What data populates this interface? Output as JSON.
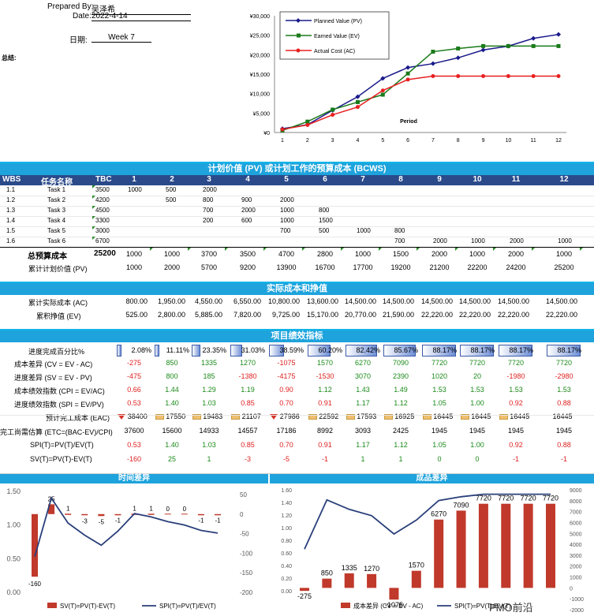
{
  "header": {
    "prepared_label": "Prepared By:",
    "prepared_value": "吴泽希",
    "date_label": "Date:",
    "date_value": "2022-4-14",
    "period_label": "日期:",
    "period_value": "Week 7",
    "summary_label": "总结:"
  },
  "top_chart": {
    "y_ticks": [
      "¥30,000",
      "¥25,000",
      "¥20,000",
      "¥15,000",
      "¥10,000",
      "¥5,000",
      "¥0"
    ],
    "x_ticks": [
      "1",
      "2",
      "3",
      "4",
      "5",
      "6",
      "7",
      "8",
      "9",
      "10",
      "11",
      "12"
    ],
    "xlabel": "Period",
    "legend": [
      "Planned Value (PV)",
      "Earned Value (EV)",
      "Actual Cost (AC)"
    ],
    "colors": {
      "pv": "#1a1a8c",
      "ev": "#1a7a1a",
      "ac": "#e82020"
    }
  },
  "chart_data": [
    {
      "type": "line",
      "title": "",
      "xlabel": "Period",
      "ylabel": "",
      "ylim": [
        0,
        30000
      ],
      "x": [
        1,
        2,
        3,
        4,
        5,
        6,
        7,
        8,
        9,
        10,
        11,
        12
      ],
      "series": [
        {
          "name": "Planned Value (PV)",
          "values": [
            1000,
            2000,
            5700,
            9200,
            13900,
            16700,
            17700,
            19200,
            21200,
            22200,
            24200,
            25200
          ]
        },
        {
          "name": "Earned Value (EV)",
          "values": [
            525,
            2800,
            5885,
            7820,
            9725,
            15170,
            20770,
            21590,
            22220,
            22220,
            22220,
            22220
          ]
        },
        {
          "name": "Actual Cost (AC)",
          "values": [
            800,
            1950,
            4550,
            6550,
            10800,
            13600,
            14500,
            14500,
            14500,
            14500,
            14500,
            14500
          ]
        }
      ]
    },
    {
      "type": "bar",
      "title": "时间差异",
      "categories": [
        "1",
        "2",
        "3",
        "4",
        "5",
        "6",
        "7",
        "8",
        "9",
        "10",
        "11",
        "12"
      ],
      "series": [
        {
          "name": "SV(T)=PV(T)-EV(T)",
          "values": [
            -160,
            25,
            1,
            -3,
            -5,
            -1,
            1,
            1,
            0,
            0,
            -1,
            -1
          ]
        },
        {
          "name": "SPI(T)=PV(T)/EV(T)",
          "values": [
            0.53,
            1.4,
            1.03,
            0.85,
            0.7,
            0.91,
            1.17,
            1.12,
            1.05,
            1.0,
            0.92,
            0.88
          ]
        }
      ],
      "ylim_left": [
        0,
        1.5
      ],
      "ylim_right": [
        -200,
        50
      ]
    },
    {
      "type": "bar",
      "title": "成品差异",
      "categories": [
        "1",
        "2",
        "3",
        "4",
        "5",
        "6",
        "7",
        "8",
        "9",
        "10",
        "11",
        "12"
      ],
      "series": [
        {
          "name": "成本差异 (CV = EV - AC)",
          "values": [
            -275,
            850,
            1335,
            1270,
            -1075,
            1570,
            6270,
            7090,
            7720,
            7720,
            7720,
            7720
          ]
        },
        {
          "name": "SPI(T)=PV(T)/EV(T)",
          "values": [
            0.66,
            1.44,
            1.29,
            1.19,
            0.9,
            1.12,
            1.43,
            1.49,
            1.53,
            1.53,
            1.53,
            1.53
          ]
        }
      ],
      "ylim_left": [
        0,
        1.6
      ],
      "ylim_right": [
        -2000,
        9000
      ]
    }
  ],
  "pv_section": {
    "title": "计划价值 (PV) 或计划工作的预算成本 (BCWS)",
    "col_wbs": "WBS",
    "col_task": "任务名称",
    "col_tbc": "TBC",
    "periods": [
      "1",
      "2",
      "3",
      "4",
      "5",
      "6",
      "7",
      "8",
      "9",
      "10",
      "11",
      "12"
    ],
    "tasks": [
      {
        "wbs": "1.1",
        "name": "Task 1",
        "tbc": "3500",
        "cells": [
          "1000",
          "500",
          "2000",
          "",
          "",
          "",
          "",
          "",
          "",
          "",
          "",
          ""
        ]
      },
      {
        "wbs": "1.2",
        "name": "Task 2",
        "tbc": "4200",
        "cells": [
          "",
          "500",
          "800",
          "900",
          "2000",
          "",
          "",
          "",
          "",
          "",
          "",
          ""
        ]
      },
      {
        "wbs": "1.3",
        "name": "Task 3",
        "tbc": "4500",
        "cells": [
          "",
          "",
          "700",
          "2000",
          "1000",
          "800",
          "",
          "",
          "",
          "",
          "",
          ""
        ]
      },
      {
        "wbs": "1.4",
        "name": "Task 4",
        "tbc": "3300",
        "cells": [
          "",
          "",
          "200",
          "600",
          "1000",
          "1500",
          "",
          "",
          "",
          "",
          "",
          ""
        ]
      },
      {
        "wbs": "1.5",
        "name": "Task 5",
        "tbc": "3000",
        "cells": [
          "",
          "",
          "",
          "",
          "700",
          "500",
          "1000",
          "800",
          "",
          "",
          "",
          ""
        ]
      },
      {
        "wbs": "1.6",
        "name": "Task 6",
        "tbc": "6700",
        "cells": [
          "",
          "",
          "",
          "",
          "",
          "",
          "",
          "700",
          "2000",
          "1000",
          "2000",
          "1000"
        ]
      }
    ],
    "budget_label": "总预算成本",
    "budget_total": "25200",
    "budget_values": [
      "1000",
      "1000",
      "3700",
      "3500",
      "4700",
      "2800",
      "1000",
      "1500",
      "2000",
      "1000",
      "2000",
      "1000"
    ],
    "cum_label": "累计计划价值 (PV)",
    "cum_values": [
      "1000",
      "2000",
      "5700",
      "9200",
      "13900",
      "16700",
      "17700",
      "19200",
      "21200",
      "22200",
      "24200",
      "25200"
    ]
  },
  "ac_section": {
    "title": "实际成本和挣值",
    "ac_label": "累计实际成本 (AC)",
    "ac_values": [
      "800.00",
      "1,950.00",
      "4,550.00",
      "6,550.00",
      "10,800.00",
      "13,600.00",
      "14,500.00",
      "14,500.00",
      "14,500.00",
      "14,500.00",
      "14,500.00",
      "14,500.00"
    ],
    "ev_label": "累积挣值 (EV)",
    "ev_values": [
      "525.00",
      "2,800.00",
      "5,885.00",
      "7,820.00",
      "9,725.00",
      "15,170.00",
      "20,770.00",
      "21,590.00",
      "22,220.00",
      "22,220.00",
      "22,220.00",
      "22,220.00"
    ]
  },
  "kpi_section": {
    "title": "项目绩效指标",
    "progress_label": "进度完成百分比%",
    "progress_values": [
      "2.08%",
      "11.11%",
      "23.35%",
      "31.03%",
      "38.59%",
      "60.20%",
      "82.42%",
      "85.67%",
      "88.17%",
      "88.17%",
      "88.17%",
      "88.17%"
    ],
    "progress_fractions": [
      0.0208,
      0.1111,
      0.2335,
      0.3103,
      0.3859,
      0.602,
      0.8242,
      0.8567,
      0.8817,
      0.8817,
      0.8817,
      0.8817
    ],
    "cv_label": "成本差异 (CV = EV - AC)",
    "cv_values": [
      "-275",
      "850",
      "1335",
      "1270",
      "-1075",
      "1570",
      "6270",
      "7090",
      "7720",
      "7720",
      "7720",
      "7720"
    ],
    "sv_label": "进度差异 (SV = EV - PV)",
    "sv_values": [
      "-475",
      "800",
      "185",
      "-1380",
      "-4175",
      "-1530",
      "3070",
      "2390",
      "1020",
      "20",
      "-1980",
      "-2980"
    ],
    "cpi_label": "成本绩效指数 (CPI = EV/AC)",
    "cpi_values": [
      "0.66",
      "1.44",
      "1.29",
      "1.19",
      "0.90",
      "1.12",
      "1.43",
      "1.49",
      "1.53",
      "1.53",
      "1.53",
      "1.53"
    ],
    "spi_label": "进度绩效指数 (SPI = EV/PV)",
    "spi_values": [
      "0.53",
      "1.40",
      "1.03",
      "0.85",
      "0.70",
      "0.91",
      "1.17",
      "1.12",
      "1.05",
      "1.00",
      "0.92",
      "0.88"
    ],
    "eac_label": "预计完工成本 (EAC)",
    "eac_values": [
      "38400",
      "17550",
      "19483",
      "21107",
      "27986",
      "22592",
      "17593",
      "16925",
      "16445",
      "16445",
      "16445",
      "16445"
    ],
    "eac_icons": [
      "down",
      "flat",
      "flat",
      "flat",
      "down",
      "flat",
      "flat",
      "flat",
      "flat",
      "flat",
      "flat",
      ""
    ],
    "etc_label": "完工尚需估算 (ETC=(BAC-EV)/CPI)",
    "etc_values": [
      "37600",
      "15600",
      "14933",
      "14557",
      "17186",
      "8992",
      "3093",
      "2425",
      "1945",
      "1945",
      "1945",
      "1945"
    ],
    "spit_label": "SPI(T)=PV(T)/EV(T)",
    "spit_values": [
      "0.53",
      "1.40",
      "1.03",
      "0.85",
      "0.70",
      "0.91",
      "1.17",
      "1.12",
      "1.05",
      "1.00",
      "0.92",
      "0.88"
    ],
    "svt_label": "SV(T)=PV(T)-EV(T)",
    "svt_values": [
      "-160",
      "25",
      "1",
      "-3",
      "-5",
      "-1",
      "1",
      "1",
      "0",
      "0",
      "-1",
      "-1"
    ]
  },
  "bottom_left": {
    "title": "时间差异",
    "left_ticks": [
      "1.50",
      "1.00",
      "0.50",
      "0.00"
    ],
    "right_ticks": [
      "50",
      "0",
      "-50",
      "-100",
      "-150",
      "-200"
    ],
    "labels": [
      "-160",
      "25",
      "1",
      "-3",
      "-5",
      "-1",
      "1",
      "1",
      "0",
      "0",
      "-1",
      "-1"
    ],
    "legend_bar": "SV(T)=PV(T)-EV(T)",
    "legend_line": "SPI(T)=PV(T)/EV(T)"
  },
  "bottom_right": {
    "title": "成品差异",
    "left_ticks": [
      "1.60",
      "1.40",
      "1.20",
      "1.00",
      "0.80",
      "0.60",
      "0.40",
      "0.20",
      "0.00"
    ],
    "right_ticks": [
      "9000",
      "8000",
      "7000",
      "6000",
      "5000",
      "4000",
      "3000",
      "2000",
      "1000",
      "0",
      "-1000",
      "-2000"
    ],
    "labels": [
      "-275",
      "850",
      "1335",
      "1270",
      "-1075",
      "1570",
      "6270",
      "7090",
      "7720",
      "7720",
      "7720",
      "7720"
    ],
    "legend_bar": "成本差异 (CV = EV - AC)",
    "legend_line": "SPI(T)=PV(T)/EV(T)",
    "watermark": "PMO前沿"
  }
}
